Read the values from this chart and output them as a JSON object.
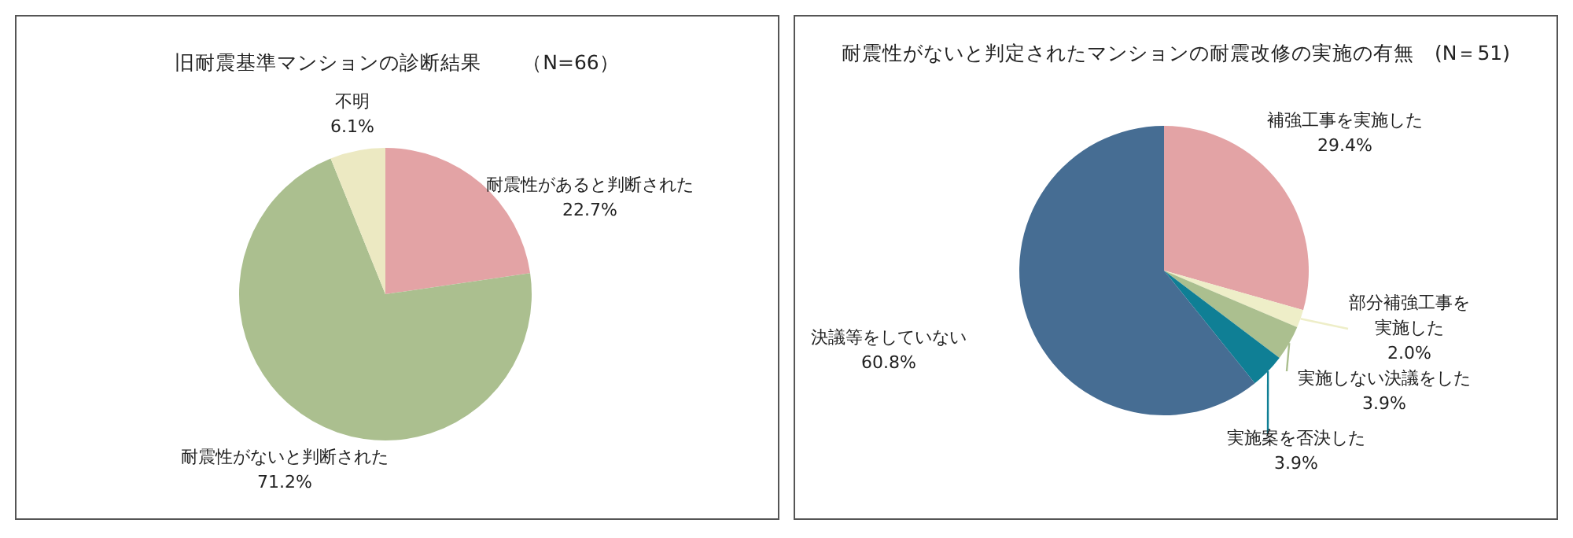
{
  "chart_data": [
    {
      "type": "pie",
      "title": "旧耐震基準マンションの診断結果　　（N=66）",
      "categories": [
        "耐震性があると判断された",
        "耐震性がないと判断された",
        "不明"
      ],
      "values": [
        22.7,
        71.2,
        6.1
      ],
      "value_labels": [
        "22.7%",
        "71.2%",
        "6.1%"
      ],
      "colors": [
        "#e3a3a5",
        "#abbf8f",
        "#ece9c2"
      ]
    },
    {
      "type": "pie",
      "title": "耐震性がないと判定されたマンションの耐震改修の実施の有無　(N＝51)",
      "categories": [
        "補強工事を実施した",
        "部分補強工事を実施した",
        "実施しない決議をした",
        "実施案を否決した",
        "決議等をしていない"
      ],
      "values": [
        29.4,
        2.0,
        3.9,
        3.9,
        60.8
      ],
      "value_labels": [
        "29.4%",
        "2.0%",
        "3.9%",
        "3.9%",
        "60.8%"
      ],
      "colors": [
        "#e3a3a5",
        "#eeeec8",
        "#abbf8f",
        "#0f7f95",
        "#466d93"
      ]
    }
  ]
}
